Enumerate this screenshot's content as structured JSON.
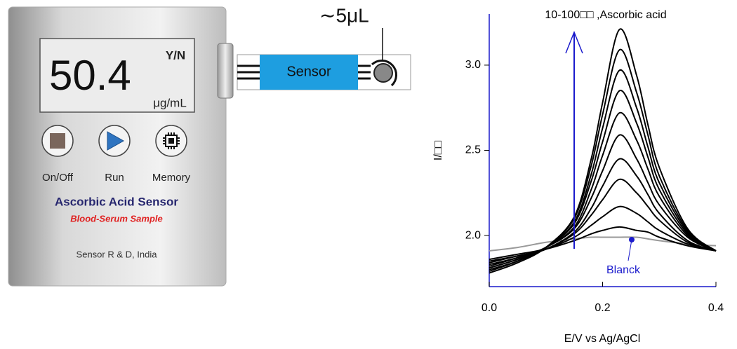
{
  "device": {
    "display_value": "50.4",
    "mode": "Y/N",
    "unit": "μg/mL",
    "buttons": [
      "On/Off",
      "Run",
      "Memory"
    ],
    "title": "Ascorbic Acid Sensor",
    "subtitle": "Blood-Serum Sample",
    "footer": "Sensor R & D, India"
  },
  "sensor": {
    "label": "Sensor",
    "volume": "∼5μL"
  },
  "chart_data": {
    "type": "line",
    "x_label": "E/V vs Ag/AgCl",
    "y_label": "I/□□",
    "annotations": [
      {
        "text": "10-100□□ ,Ascorbic acid"
      },
      {
        "text": "Blanck"
      }
    ],
    "x": [
      0,
      0.05,
      0.1,
      0.15,
      0.18,
      0.2,
      0.23,
      0.26,
      0.28,
      0.3,
      0.35,
      0.4
    ],
    "xlim": [
      0,
      0.4
    ],
    "ylim": [
      1.7,
      3.3
    ],
    "xticks": [
      {
        "value": 0,
        "label": "0.0"
      },
      {
        "value": 0.2,
        "label": "0.2"
      },
      {
        "value": 0.4,
        "label": "0.4"
      }
    ],
    "yticks": [
      {
        "value": 2,
        "label": "2.0"
      },
      {
        "value": 2.5,
        "label": "2.5"
      },
      {
        "value": 3,
        "label": "3.0"
      }
    ],
    "series": [
      {
        "color": "#999999",
        "values": [
          1.91,
          1.93,
          1.96,
          1.98,
          1.99,
          1.99,
          1.99,
          1.99,
          1.98,
          1.97,
          1.95,
          1.94
        ]
      },
      {
        "color": "#000000",
        "values": [
          1.86,
          1.89,
          1.92,
          1.97,
          2.01,
          2.03,
          2.05,
          2.03,
          2.02,
          1.99,
          1.94,
          1.91
        ]
      },
      {
        "color": "#000000",
        "values": [
          1.85,
          1.88,
          1.92,
          1.99,
          2.06,
          2.11,
          2.17,
          2.13,
          2.08,
          2.03,
          1.95,
          1.91
        ]
      },
      {
        "color": "#000000",
        "values": [
          1.84,
          1.88,
          1.92,
          2.01,
          2.12,
          2.21,
          2.33,
          2.25,
          2.17,
          2.09,
          1.96,
          1.91
        ]
      },
      {
        "color": "#000000",
        "values": [
          1.83,
          1.87,
          1.92,
          2.02,
          2.16,
          2.29,
          2.45,
          2.35,
          2.24,
          2.13,
          1.97,
          1.91
        ]
      },
      {
        "color": "#000000",
        "values": [
          1.82,
          1.87,
          1.93,
          2.04,
          2.22,
          2.38,
          2.59,
          2.45,
          2.31,
          2.18,
          1.99,
          1.91
        ]
      },
      {
        "color": "#000000",
        "values": [
          1.81,
          1.86,
          1.93,
          2.05,
          2.27,
          2.47,
          2.72,
          2.56,
          2.39,
          2.23,
          2.0,
          1.91
        ]
      },
      {
        "color": "#000000",
        "values": [
          1.81,
          1.86,
          1.93,
          2.07,
          2.32,
          2.55,
          2.85,
          2.66,
          2.46,
          2.27,
          2.01,
          1.91
        ]
      },
      {
        "color": "#000000",
        "values": [
          1.8,
          1.85,
          1.93,
          2.08,
          2.36,
          2.63,
          2.97,
          2.75,
          2.52,
          2.31,
          2.02,
          1.91
        ]
      },
      {
        "color": "#000000",
        "values": [
          1.79,
          1.85,
          1.93,
          2.1,
          2.41,
          2.71,
          3.09,
          2.84,
          2.59,
          2.35,
          2.03,
          1.91
        ]
      },
      {
        "color": "#000000",
        "values": [
          1.78,
          1.84,
          1.93,
          2.11,
          2.45,
          2.78,
          3.21,
          2.94,
          2.65,
          2.4,
          2.04,
          1.91
        ]
      }
    ]
  }
}
